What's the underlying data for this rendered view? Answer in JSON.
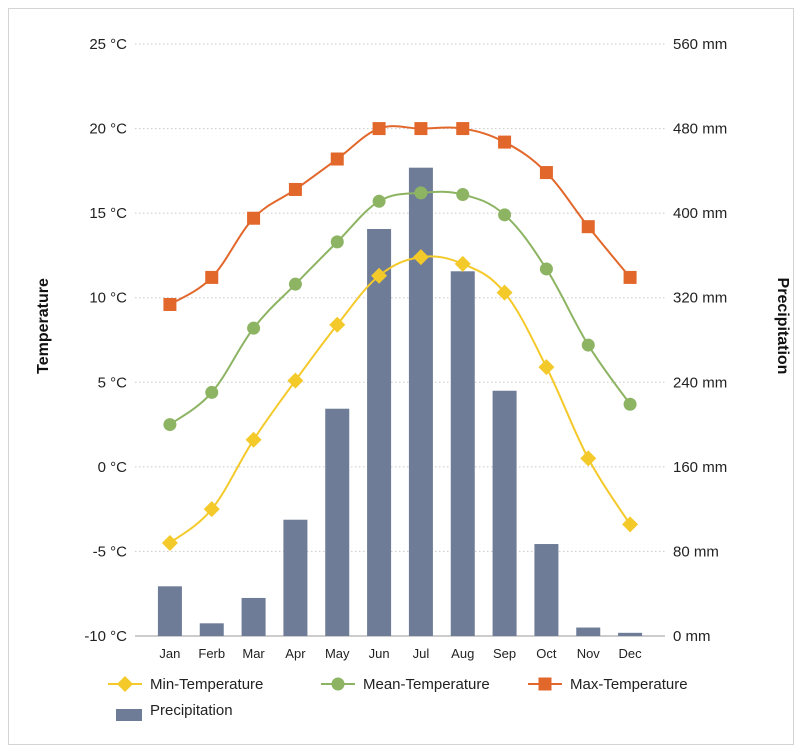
{
  "chart_data": {
    "type": "bar+line",
    "categories": [
      "Jan",
      "Ferb",
      "Mar",
      "Apr",
      "May",
      "Jun",
      "Jul",
      "Aug",
      "Sep",
      "Oct",
      "Nov",
      "Dec"
    ],
    "y_left": {
      "label": "Temperature",
      "range": [
        -10,
        25
      ],
      "ticks": [
        -10,
        -5,
        0,
        5,
        10,
        15,
        20,
        25
      ],
      "tick_labels": [
        "-10 °C",
        "-5 °C",
        "0 °C",
        "5 °C",
        "10 °C",
        "15 °C",
        "20 °C",
        "25 °C"
      ]
    },
    "y_right": {
      "label": "Precipitation",
      "range": [
        0,
        560
      ],
      "ticks": [
        0,
        80,
        160,
        240,
        320,
        400,
        480,
        560
      ],
      "tick_labels": [
        "0 mm",
        "80 mm",
        "160 mm",
        "240 mm",
        "320 mm",
        "400 mm",
        "480 mm",
        "560 mm"
      ]
    },
    "grid": "horizontal dotted",
    "legend_position": "bottom",
    "series": [
      {
        "name": "Min-Temperature",
        "type": "line",
        "axis": "left",
        "marker": "diamond",
        "color": "#f4c92a",
        "values": [
          -4.5,
          -2.5,
          1.6,
          5.1,
          8.4,
          11.3,
          12.4,
          12.0,
          10.3,
          5.9,
          0.5,
          -3.4
        ]
      },
      {
        "name": "Mean-Temperature",
        "type": "line",
        "axis": "left",
        "marker": "circle",
        "color": "#8db463",
        "values": [
          2.5,
          4.4,
          8.2,
          10.8,
          13.3,
          15.7,
          16.2,
          16.1,
          14.9,
          11.7,
          7.2,
          3.7
        ]
      },
      {
        "name": "Max-Temperature",
        "type": "line",
        "axis": "left",
        "marker": "square",
        "color": "#e2672b",
        "values": [
          9.6,
          11.2,
          14.7,
          16.4,
          18.2,
          20.0,
          20.0,
          20.0,
          19.2,
          17.4,
          14.2,
          11.2
        ]
      },
      {
        "name": "Precipitation",
        "type": "bar",
        "axis": "right",
        "color": "#6e7c97",
        "values": [
          47,
          12,
          36,
          110,
          215,
          385,
          443,
          345,
          232,
          87,
          8,
          3
        ]
      }
    ]
  }
}
